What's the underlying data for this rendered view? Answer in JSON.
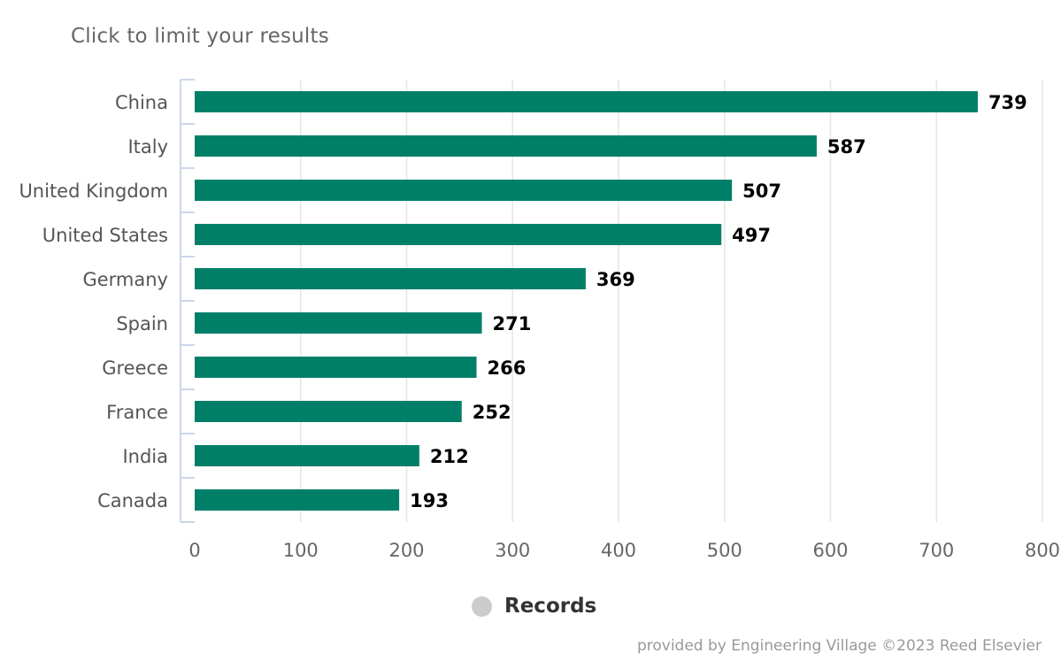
{
  "subtitle": "Click to limit your results",
  "credits": "provided by Engineering Village ©2023 Reed Elsevier",
  "colors": {
    "bar": "#007f68",
    "grid": "#e6e6e6",
    "axis_line": "#ccd6eb",
    "legend_dot": "#cccccc"
  },
  "chart_data": {
    "type": "bar",
    "orientation": "horizontal",
    "categories": [
      "China",
      "Italy",
      "United Kingdom",
      "United States",
      "Germany",
      "Spain",
      "Greece",
      "France",
      "India",
      "Canada"
    ],
    "series": [
      {
        "name": "Records",
        "values": [
          739,
          587,
          507,
          497,
          369,
          271,
          266,
          252,
          212,
          193
        ]
      }
    ],
    "xlim": [
      0,
      800
    ],
    "xticks": [
      0,
      100,
      200,
      300,
      400,
      500,
      600,
      700,
      800
    ],
    "grid": true,
    "data_labels": true,
    "legend_position": "bottom"
  }
}
